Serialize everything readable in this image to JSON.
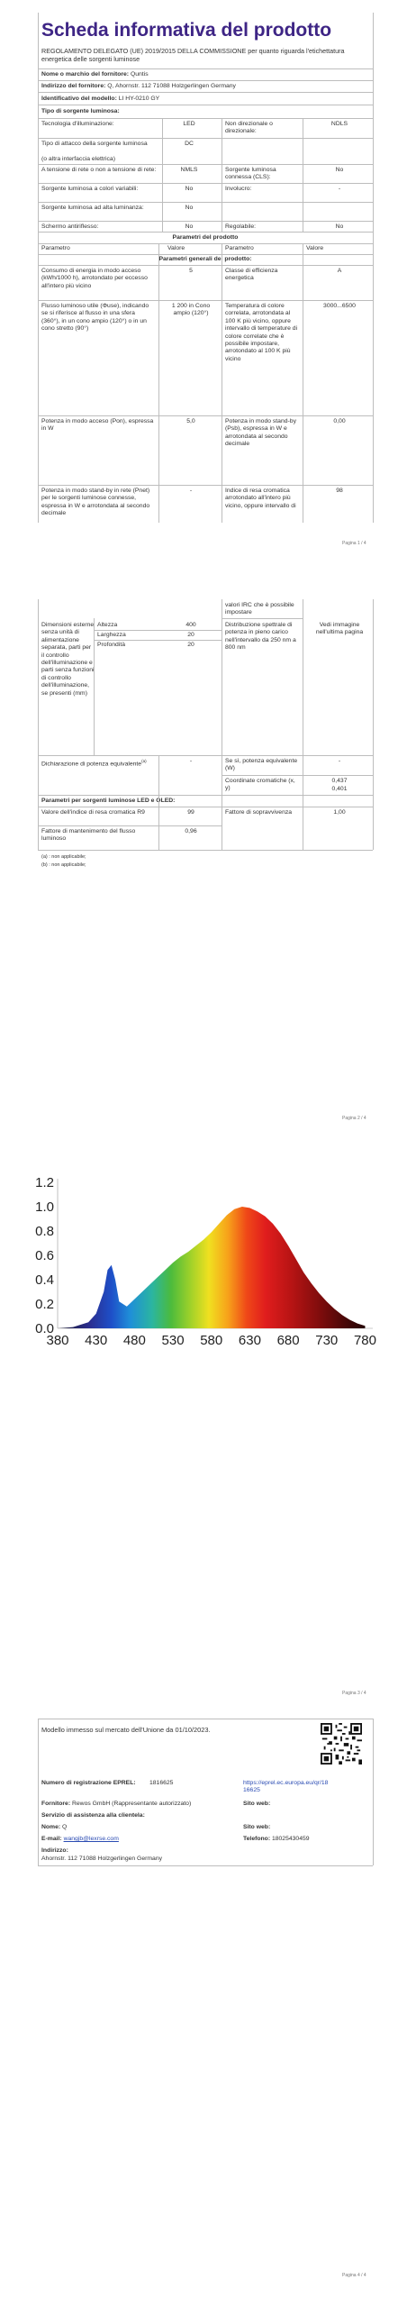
{
  "page1": {
    "title": "Scheda informativa del prodotto",
    "regulation": "REGOLAMENTO DELEGATO (UE) 2019/2015 DELLA COMMISSIONE per quanto riguarda l'etichettatura energetica delle sorgenti luminose",
    "supplier_name_label": "Nome o marchio del fornitore:",
    "supplier_name": "Quntis",
    "supplier_address_label": "Indirizzo del fornitore:",
    "supplier_address": "Q, Ahornstr. 112 71088 Holzgerlingen Germany",
    "model_label": "Identificativo del modello:",
    "model": "LI HY-0210 GY",
    "type_heading": "Tipo di sorgente luminosa:",
    "tech_label": "Tecnologia d'illuminazione:",
    "tech_value": "LED",
    "nondir_label": "Non direzionale o direzionale:",
    "nondir_value": "NDLS",
    "cap_label": "Tipo di attacco della sorgente luminosa",
    "cap_sub": "(o altra interfaccia elettrica)",
    "cap_value": "DC",
    "mains_label": "A tensione di rete o non a tensione di rete:",
    "mains_value": "NMLS",
    "connected_label": "Sorgente luminosa connessa (CLS):",
    "connected_value": "No",
    "tunable_label": "Sorgente luminosa a colori variabili:",
    "tunable_value": "No",
    "envelope_label": "Involucro:",
    "envelope_value": "-",
    "highlum_label": "Sorgente luminosa ad alta luminanza:",
    "highlum_value": "No",
    "glare_label": "Schermo antiriflesso:",
    "glare_value": "No",
    "dimmable_label": "Regolabile:",
    "dimmable_value": "No",
    "params_heading": "Parametri del prodotto",
    "col_param": "Parametro",
    "col_value": "Valore",
    "general_heading": "Parametri generali del prodotto:",
    "energy_label": "Consumo di energia in modo acceso (kWh/1000 h), arrotondato per eccesso all'intero più vicino",
    "energy_value": "5",
    "class_label": "Classe di efficienza energetica",
    "class_value": "A",
    "flux_label": "Flusso luminoso utile (Φuse), indicando se si riferisce al flusso in una sfera (360°), in un cono ampio (120°) o in un cono stretto (90°)",
    "flux_value": "1 200 in Cono ampio (120°)",
    "cct_label": "Temperatura di colore correlata, arrotondata al 100 K più vicino, oppure intervallo di temperature di colore correlate che è possibile impostare, arrotondato al 100 K più vicino",
    "cct_value": "3000...6500",
    "onmode_label": "Potenza in modo acceso (Pon), espressa in W",
    "onmode_value": "5,0",
    "standby_label": "Potenza in modo stand-by (Psb), espressa in W e arrotondata al secondo decimale",
    "standby_value": "0,00",
    "netstandby_label": "Potenza in modo stand-by in rete (Pnet) per le sorgenti luminose connesse, espressa in W e arrotondata al secondo decimale",
    "netstandby_value": "-",
    "cri_label": "Indice di resa cromatica arrotondato all'intero più vicino, oppure intervallo di",
    "cri_value": "98",
    "page_no": "Pagina 1 / 4"
  },
  "page2": {
    "cri_cont": "valori IRC che è possibile impostare",
    "dims_label": "Dimensioni esterne senza unità di alimentazione separata, parti per il controllo dell'illuminazione e parti senza funzioni di controllo dell'illuminazione, se presenti (mm)",
    "height_label": "Altezza",
    "height_value": "400",
    "width_label": "Larghezza",
    "width_value": "20",
    "depth_label": "Profondità",
    "depth_value": "20",
    "spd_label": "Distribuzione spettrale di potenza in pieno carico nell'intervallo da 250 nm a 800 nm",
    "spd_value": "Vedi immagine nell'ultima pagina",
    "equiv_label": "Dichiarazione di potenza equivalente",
    "equiv_value": "-",
    "equiv_w_label": "Se sì, potenza equivalente (W)",
    "equiv_w_value": "-",
    "chroma_label": "Coordinate cromatiche (x, y)",
    "chroma_x": "0,437",
    "chroma_y": "0,401",
    "led_heading": "Parametri per sorgenti luminose LED e OLED:",
    "r9_label": "Valore dell'indice di resa cromatica R9",
    "r9_value": "99",
    "survival_label": "Fattore di sopravvivenza",
    "survival_value": "1,00",
    "maint_label": "Fattore di mantenimento del flusso luminoso",
    "maint_value": "0,96",
    "note_a": "(a) : non applicabile;",
    "note_b": "(b) : non applicabile;",
    "page_no": "Pagina 2 / 4"
  },
  "page3": {
    "page_no": "Pagina 3 / 4"
  },
  "page4": {
    "market_text": "Modello immesso sul mercato dell'Unione da 01/10/2023.",
    "eprel_label": "Numero di registrazione EPREL:",
    "eprel_value": "1816625",
    "eprel_link": "https://eprel.ec.europa.eu/qr/1816625",
    "supplier_label": "Fornitore:",
    "supplier_value": "Rewos GmbH (Rappresentante autorizzato)",
    "website_label": "Sito web:",
    "website_value": "",
    "support_heading": "Servizio di assistenza alla clientela:",
    "name_label": "Nome:",
    "name_value": "Q",
    "web2_label": "Sito web:",
    "web2_value": "",
    "email_label": "E-mail:",
    "email_value": "wangjb@lexrse.com",
    "phone_label": "Telefono:",
    "phone_value": "18025430459",
    "address_label": "Indirizzo:",
    "address_value": "Ahornstr. 112 71088 Holzgerlingen Germany",
    "page_no": "Pagina 4 / 4"
  },
  "chart_data": {
    "type": "area",
    "x": [
      380,
      400,
      420,
      430,
      440,
      445,
      450,
      455,
      460,
      470,
      480,
      490,
      500,
      510,
      520,
      530,
      540,
      550,
      560,
      570,
      580,
      590,
      600,
      610,
      620,
      630,
      640,
      650,
      660,
      670,
      680,
      690,
      700,
      710,
      720,
      730,
      740,
      750,
      760,
      770,
      780
    ],
    "values": [
      0.0,
      0.01,
      0.05,
      0.12,
      0.3,
      0.48,
      0.52,
      0.4,
      0.22,
      0.18,
      0.24,
      0.3,
      0.36,
      0.42,
      0.48,
      0.54,
      0.59,
      0.63,
      0.68,
      0.73,
      0.79,
      0.86,
      0.93,
      0.98,
      1.0,
      0.99,
      0.96,
      0.92,
      0.86,
      0.78,
      0.68,
      0.57,
      0.46,
      0.37,
      0.29,
      0.22,
      0.16,
      0.11,
      0.07,
      0.04,
      0.02
    ],
    "xticks": [
      "380",
      "430",
      "480",
      "530",
      "580",
      "630",
      "680",
      "730",
      "780"
    ],
    "yticks": [
      "0.0",
      "0.2",
      "0.4",
      "0.6",
      "0.8",
      "1.0",
      "1.2"
    ],
    "xlim": [
      380,
      790
    ],
    "ylim": [
      0,
      1.2
    ],
    "grid": false
  }
}
